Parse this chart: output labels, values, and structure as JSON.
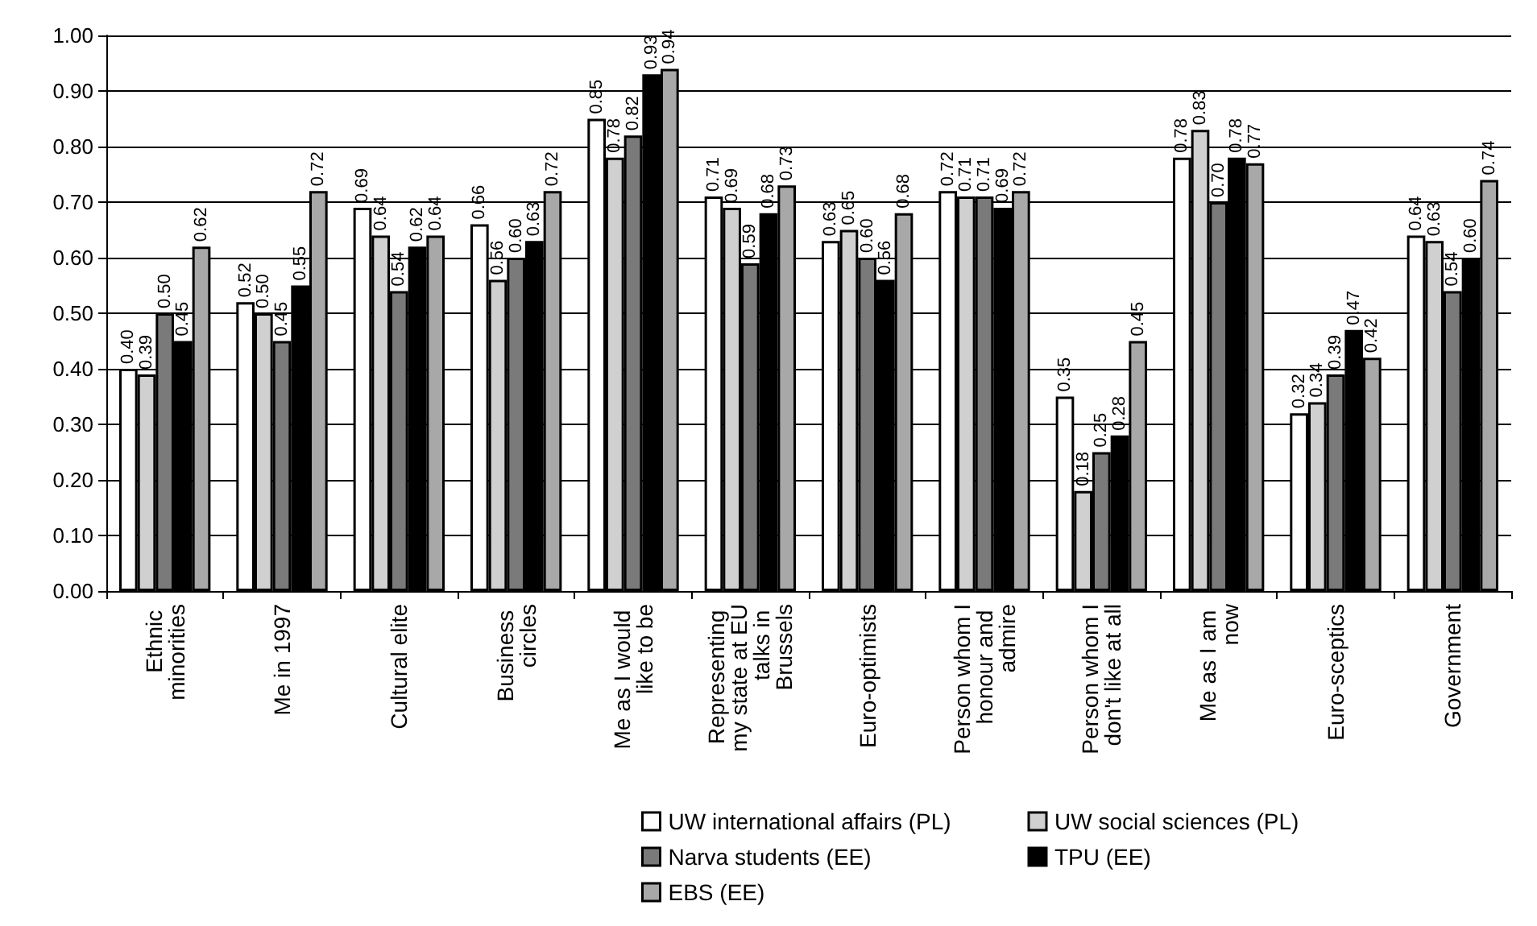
{
  "chart_data": {
    "type": "bar",
    "categories": [
      "Ethnic minorities",
      "Me in 1997",
      "Cultural elite",
      "Business circles",
      "Me as I would like to be",
      "Representing my state at EU talks in Brussels",
      "Euro-optimists",
      "Person whom I honour and admire",
      "Person whom I don't like at all",
      "Me as I am now",
      "Euro-sceptics",
      "Government"
    ],
    "series": [
      {
        "name": "UW international affairs (PL)",
        "color": "#ffffff",
        "values": [
          0.4,
          0.52,
          0.69,
          0.66,
          0.85,
          0.71,
          0.63,
          0.72,
          0.35,
          0.78,
          0.32,
          0.64
        ],
        "value_labels": [
          "0.40",
          "0.52",
          "0.69",
          "0.66",
          "0.85",
          "0.71",
          "0.63",
          "0.72",
          "0.35",
          "0.78",
          "0.32",
          "0.64"
        ]
      },
      {
        "name": "UW social sciences (PL)",
        "color": "#d0d0d0",
        "values": [
          0.39,
          0.5,
          0.64,
          0.56,
          0.78,
          0.69,
          0.65,
          0.71,
          0.18,
          0.83,
          0.34,
          0.63
        ],
        "value_labels": [
          "0.39",
          "0.50",
          "0.64",
          "0.56",
          "0.78",
          "0.69",
          "0.65",
          "0.71",
          "0.18",
          "0.83",
          "0.34",
          "0.63"
        ]
      },
      {
        "name": "Narva students (EE)",
        "color": "#7a7a7a",
        "values": [
          0.5,
          0.45,
          0.54,
          0.6,
          0.82,
          0.59,
          0.6,
          0.71,
          0.25,
          0.7,
          0.39,
          0.54
        ],
        "value_labels": [
          "0.50",
          "0.45",
          "0.54",
          "0.60",
          "0.82",
          "0.59",
          "0.60",
          "0.71",
          "0.25",
          "0.70",
          "0.39",
          "0.54"
        ]
      },
      {
        "name": "TPU (EE)",
        "color": "#000000",
        "values": [
          0.45,
          0.55,
          0.62,
          0.63,
          0.93,
          0.68,
          0.56,
          0.69,
          0.28,
          0.78,
          0.47,
          0.6
        ],
        "value_labels": [
          "0.45",
          "0.55",
          "0.62",
          "0.63",
          "0.93",
          "0.68",
          "0.56",
          "0.69",
          "0.28",
          "0.78",
          "0.47",
          "0.60"
        ]
      },
      {
        "name": "EBS (EE)",
        "color": "#a8a8a8",
        "values": [
          0.62,
          0.72,
          0.64,
          0.72,
          0.94,
          0.73,
          0.68,
          0.72,
          0.45,
          0.77,
          0.42,
          0.74
        ],
        "value_labels": [
          "0.62",
          "0.72",
          "0.64",
          "0.72",
          "0.94",
          "0.73",
          "0.68",
          "0.72",
          "0.45",
          "0.77",
          "0.42",
          "0.74"
        ]
      }
    ],
    "ylim": [
      0,
      1
    ],
    "yticks": [
      {
        "value": 0,
        "label": "0.00"
      },
      {
        "value": 0.1,
        "label": "0.10"
      },
      {
        "value": 0.2,
        "label": "0.20"
      },
      {
        "value": 0.3,
        "label": "0.30"
      },
      {
        "value": 0.4,
        "label": "0.40"
      },
      {
        "value": 0.5,
        "label": "0.50"
      },
      {
        "value": 0.6,
        "label": "0.60"
      },
      {
        "value": 0.7,
        "label": "0.70"
      },
      {
        "value": 0.8,
        "label": "0.80"
      },
      {
        "value": 0.9,
        "label": "0.90"
      },
      {
        "value": 1,
        "label": "1.00"
      }
    ],
    "grid": "y",
    "legend": "bottom"
  }
}
